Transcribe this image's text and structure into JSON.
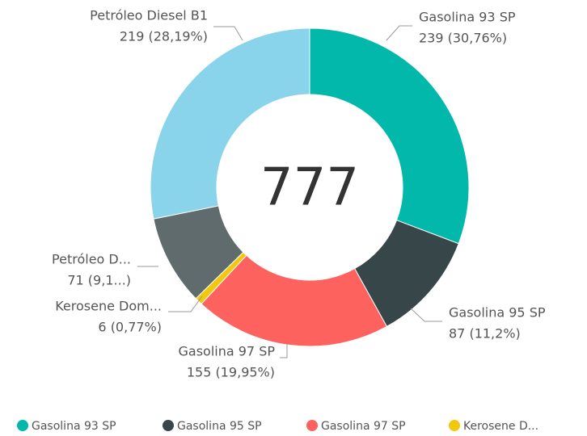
{
  "chart_data": {
    "type": "donut",
    "categories": [
      "Gasolina 93 SP",
      "Gasolina 95 SP",
      "Gasolina 97 SP",
      "Kerosene Dom...",
      "Petróleo D...",
      "Petróleo Diesel B1"
    ],
    "values": [
      239,
      87,
      155,
      6,
      71,
      219
    ],
    "value_labels": [
      "239 (30,76%)",
      "87 (11,2%)",
      "155 (19,95%)",
      "6 (0,77%)",
      "71 (9,1...)",
      "219 (28,19%)"
    ],
    "colors": [
      "#01B8AA",
      "#374649",
      "#FD625E",
      "#F2C80F",
      "#5F6B6D",
      "#8AD4EB"
    ],
    "center_label": "777",
    "legend_labels": [
      "Gasolina 93 SP",
      "Gasolina 95 SP",
      "Gasolina 97 SP",
      "Kerosene D..."
    ]
  }
}
